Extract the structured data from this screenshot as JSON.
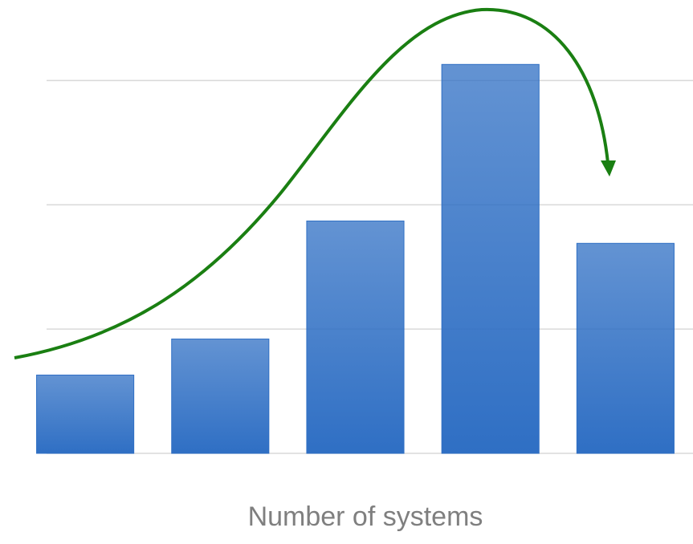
{
  "chart_data": {
    "type": "bar",
    "x_label": "Number of systems",
    "categories": [
      null,
      null,
      null,
      null,
      null
    ],
    "values": [
      0.63,
      0.92,
      1.87,
      3.13,
      1.69
    ],
    "color": "#2f6fc4",
    "ylim": [
      0,
      3.5
    ],
    "yticks": [
      0,
      1,
      2,
      3
    ],
    "grid": true
  }
}
